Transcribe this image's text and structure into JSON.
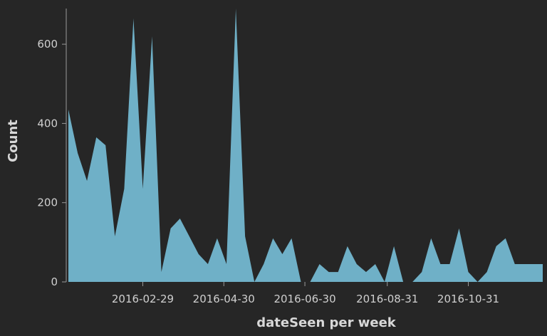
{
  "chart_data": {
    "type": "area",
    "title": "",
    "xlabel": "dateSeen per week",
    "ylabel": "Count",
    "ylim": [
      0,
      690
    ],
    "xlim": [
      "2016-01-04",
      "2016-12-26"
    ],
    "y_ticks": [
      0,
      200,
      400,
      600
    ],
    "x_ticks": [
      "2016-02-29",
      "2016-04-30",
      "2016-06-30",
      "2016-08-31",
      "2016-10-31"
    ],
    "grid": false,
    "colors": {
      "fill": "#6fb0c7",
      "background": "#262626",
      "text": "#cfcfcf",
      "axis": "#9a9a9a"
    },
    "series": [
      {
        "x": [
          "2016-01-04",
          "2016-01-11",
          "2016-01-18",
          "2016-01-25",
          "2016-02-01",
          "2016-02-08",
          "2016-02-15",
          "2016-02-22",
          "2016-02-29",
          "2016-03-07",
          "2016-03-14",
          "2016-03-21",
          "2016-03-28",
          "2016-04-04",
          "2016-04-11",
          "2016-04-18",
          "2016-04-25",
          "2016-05-02",
          "2016-05-09",
          "2016-05-16",
          "2016-05-23",
          "2016-05-30",
          "2016-06-06",
          "2016-06-13",
          "2016-06-20",
          "2016-06-27",
          "2016-07-04",
          "2016-07-11",
          "2016-07-18",
          "2016-07-25",
          "2016-08-01",
          "2016-08-08",
          "2016-08-15",
          "2016-08-22",
          "2016-08-29",
          "2016-09-05",
          "2016-09-12",
          "2016-09-19",
          "2016-09-26",
          "2016-10-03",
          "2016-10-10",
          "2016-10-17",
          "2016-10-24",
          "2016-10-31",
          "2016-11-07",
          "2016-11-14",
          "2016-11-21",
          "2016-11-28",
          "2016-12-05",
          "2016-12-12",
          "2016-12-19",
          "2016-12-26"
        ],
        "values": [
          435,
          325,
          255,
          365,
          345,
          115,
          235,
          665,
          235,
          620,
          25,
          135,
          160,
          115,
          70,
          45,
          110,
          45,
          690,
          115,
          0,
          45,
          110,
          70,
          110,
          0,
          0,
          45,
          25,
          25,
          90,
          45,
          25,
          45,
          0,
          90,
          0,
          0,
          25,
          110,
          45,
          45,
          135,
          25,
          0,
          25,
          90,
          110,
          45,
          45,
          45,
          45
        ]
      }
    ]
  }
}
